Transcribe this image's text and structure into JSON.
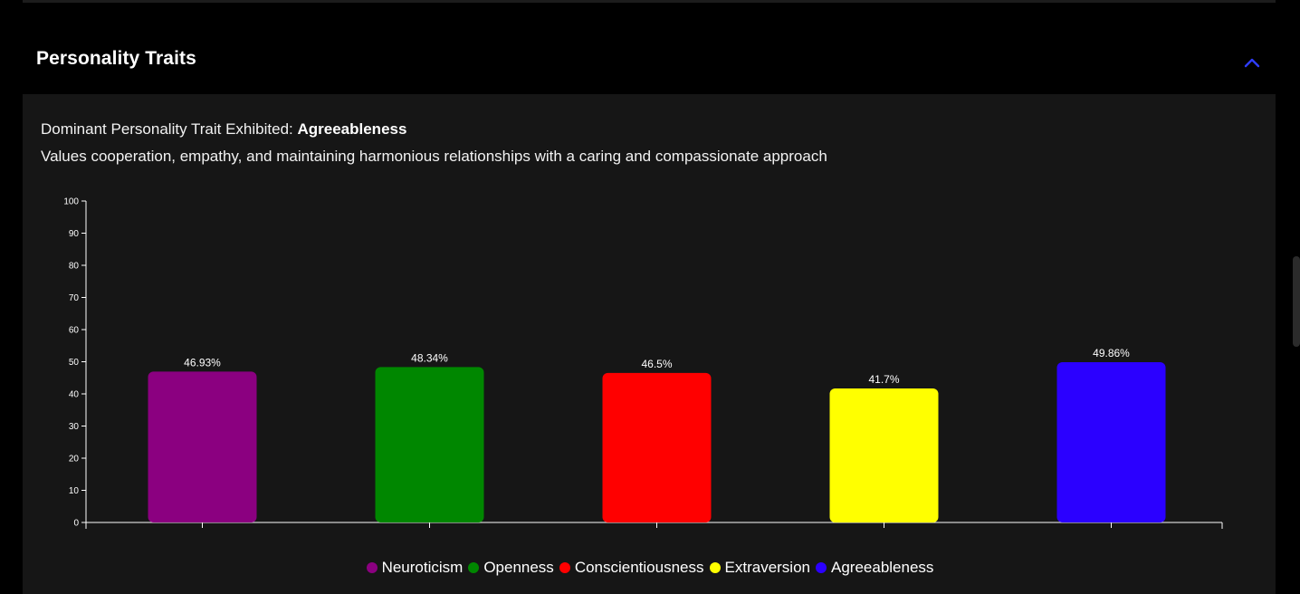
{
  "panel": {
    "title": "Personality Traits",
    "dominant_prefix": "Dominant Personality Trait Exhibited:",
    "dominant_trait": "Agreeableness",
    "description": "Values cooperation, empathy, and maintaining harmonious relationships with a caring and compassionate approach"
  },
  "icons": {
    "collapse": "chevron-up-icon"
  },
  "colors": {
    "accent": "#2f3dff",
    "panel_bg": "#161616",
    "page_bg": "#000000"
  },
  "chart_data": {
    "type": "bar",
    "title": "",
    "xlabel": "",
    "ylabel": "",
    "ylim": [
      0,
      100
    ],
    "yticks": [
      "0",
      "10",
      "20",
      "30",
      "40",
      "50",
      "60",
      "70",
      "80",
      "90",
      "100"
    ],
    "grid": false,
    "legend_position": "bottom",
    "categories": [
      "Neuroticism",
      "Openness",
      "Conscientiousness",
      "Extraversion",
      "Agreeableness"
    ],
    "values": [
      46.93,
      48.34,
      46.5,
      41.7,
      49.86
    ],
    "labels": [
      "46.93%",
      "48.34%",
      "46.5%",
      "41.7%",
      "49.86%"
    ],
    "colors": [
      "#8b0080",
      "#008700",
      "#ff0000",
      "#ffff00",
      "#2b00ff"
    ]
  }
}
